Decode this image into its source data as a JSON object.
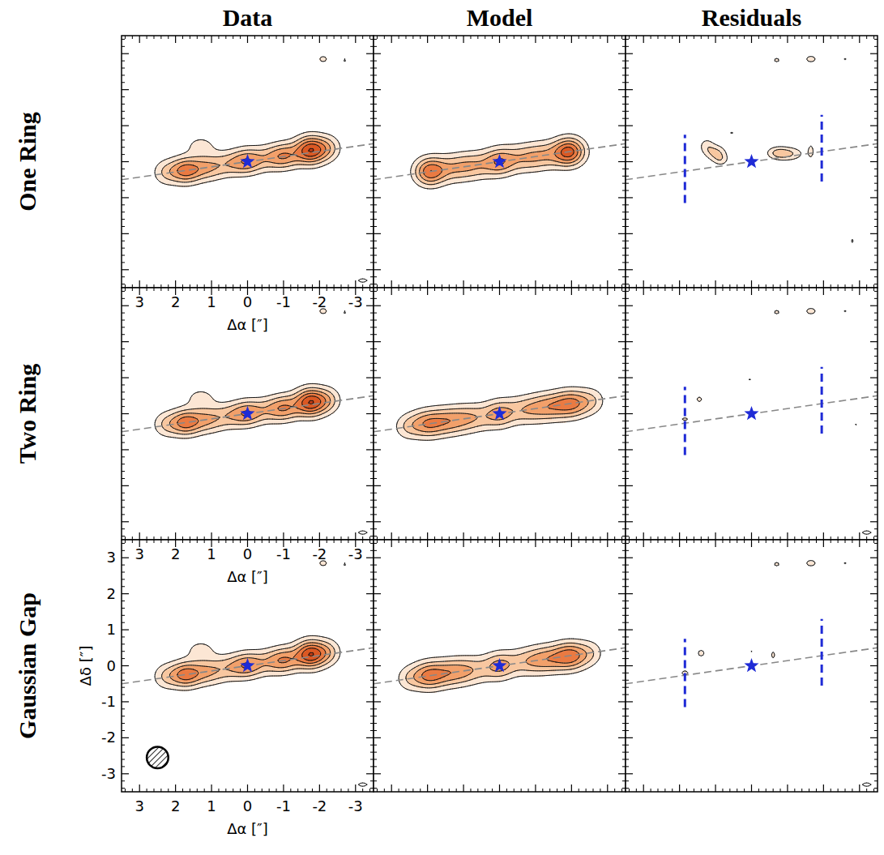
{
  "chart_data": {
    "type": "contour",
    "columns": [
      "Data",
      "Model",
      "Residuals"
    ],
    "xlabel": "Δα [″]",
    "ylabel": "Δδ [″]",
    "xlim": [
      3.5,
      -3.5
    ],
    "ylim": [
      -3.5,
      3.5
    ],
    "xticks": [
      3,
      2,
      1,
      0,
      -1,
      -2,
      -3
    ],
    "yticks": [
      -3,
      -2,
      -1,
      0,
      1,
      2,
      3
    ],
    "levels": [
      3,
      6,
      9,
      12,
      15,
      18
    ],
    "colors": [
      "#fce6d4",
      "#f8c7a0",
      "#f2a06a",
      "#ea7a42",
      "#db5823",
      "#c43a14"
    ],
    "negative_levels": [
      -3
    ],
    "star": {
      "x": 0,
      "y": 0,
      "color": "#1f2bd6"
    },
    "disk_axis": {
      "x": [
        3.5,
        -3.5
      ],
      "y": [
        -0.5,
        0.5
      ]
    },
    "gap_markers": {
      "color": "#1f2bd6",
      "lines": [
        {
          "x": 1.85,
          "y": [
            -1.15,
            0.75
          ]
        },
        {
          "x": -1.95,
          "y": [
            -0.55,
            1.3
          ]
        }
      ]
    },
    "rows": [
      {
        "label": "One Ring",
        "panels": [
          {
            "components": [
              {
                "x": 1.75,
                "y": -0.25,
                "peak": 12,
                "sx": 0.3,
                "sy": 0.25
              },
              {
                "x": 1.15,
                "y": -0.17,
                "peak": 8,
                "sx": 0.35,
                "sy": 0.25
              },
              {
                "x": 0.5,
                "y": -0.05,
                "peak": 6,
                "sx": 0.35,
                "sy": 0.25
              },
              {
                "x": 0.0,
                "y": 0.02,
                "peak": 9,
                "sx": 0.3,
                "sy": 0.25
              },
              {
                "x": -0.6,
                "y": 0.1,
                "peak": 6,
                "sx": 0.35,
                "sy": 0.25
              },
              {
                "x": -1.05,
                "y": 0.17,
                "peak": 9,
                "sx": 0.3,
                "sy": 0.25
              },
              {
                "x": -1.75,
                "y": 0.32,
                "peak": 17,
                "sx": 0.3,
                "sy": 0.27
              },
              {
                "x": -2.25,
                "y": 0.38,
                "peak": 6,
                "sx": 0.25,
                "sy": 0.25
              },
              {
                "x": 2.3,
                "y": -0.3,
                "peak": 5,
                "sx": 0.25,
                "sy": 0.25
              },
              {
                "x": 1.3,
                "y": 0.45,
                "peak": 4,
                "sx": 0.3,
                "sy": 0.2
              },
              {
                "x": -2.1,
                "y": 2.85,
                "peak": 4,
                "sx": 0.12,
                "sy": 0.09
              },
              {
                "x": -2.7,
                "y": 2.82,
                "peak": 3.4,
                "sx": 0.08,
                "sy": 0.06
              },
              {
                "x": -3.2,
                "y": -3.3,
                "peak": -3.6,
                "sx": 0.2,
                "sy": 0.08
              }
            ]
          },
          {
            "components": [
              {
                "x": 1.95,
                "y": -0.28,
                "peak": 13,
                "sx": 0.3,
                "sy": 0.27
              },
              {
                "x": 1.3,
                "y": -0.19,
                "peak": 7,
                "sx": 0.4,
                "sy": 0.27
              },
              {
                "x": 0.65,
                "y": -0.09,
                "peak": 7,
                "sx": 0.4,
                "sy": 0.27
              },
              {
                "x": 0.0,
                "y": 0.0,
                "peak": 9,
                "sx": 0.3,
                "sy": 0.27
              },
              {
                "x": -0.65,
                "y": 0.09,
                "peak": 7,
                "sx": 0.4,
                "sy": 0.27
              },
              {
                "x": -1.3,
                "y": 0.19,
                "peak": 7,
                "sx": 0.4,
                "sy": 0.27
              },
              {
                "x": -1.95,
                "y": 0.28,
                "peak": 15,
                "sx": 0.3,
                "sy": 0.27
              }
            ]
          },
          {
            "components": [
              {
                "x": 1.0,
                "y": 0.25,
                "peak": 6.5,
                "sx": 0.2,
                "sy": 0.15
              },
              {
                "x": 1.25,
                "y": 0.45,
                "peak": 4,
                "sx": 0.15,
                "sy": 0.15
              },
              {
                "x": 0.85,
                "y": 0.05,
                "peak": 4,
                "sx": 0.15,
                "sy": 0.12
              },
              {
                "x": -1.0,
                "y": 0.22,
                "peak": 6.5,
                "sx": 0.3,
                "sy": 0.13
              },
              {
                "x": -0.7,
                "y": 0.25,
                "peak": 4,
                "sx": 0.2,
                "sy": 0.12
              },
              {
                "x": -1.65,
                "y": 0.3,
                "peak": 3.8,
                "sx": 0.07,
                "sy": 0.18
              },
              {
                "x": 0.55,
                "y": 0.8,
                "peak": 3.3,
                "sx": 0.08,
                "sy": 0.05
              },
              {
                "x": -0.7,
                "y": 2.82,
                "peak": 3.6,
                "sx": 0.1,
                "sy": 0.08
              },
              {
                "x": -1.65,
                "y": 2.85,
                "peak": 4.2,
                "sx": 0.14,
                "sy": 0.09
              },
              {
                "x": -2.6,
                "y": 2.85,
                "peak": 3.3,
                "sx": 0.07,
                "sy": 0.05
              },
              {
                "x": -2.8,
                "y": -2.2,
                "peak": 3.4,
                "sx": 0.06,
                "sy": 0.09
              }
            ]
          }
        ]
      },
      {
        "label": "Two Ring",
        "panels": [
          {
            "components": [
              {
                "x": 1.75,
                "y": -0.25,
                "peak": 12,
                "sx": 0.3,
                "sy": 0.25
              },
              {
                "x": 1.15,
                "y": -0.17,
                "peak": 8,
                "sx": 0.35,
                "sy": 0.25
              },
              {
                "x": 0.5,
                "y": -0.05,
                "peak": 6,
                "sx": 0.35,
                "sy": 0.25
              },
              {
                "x": 0.0,
                "y": 0.02,
                "peak": 9,
                "sx": 0.3,
                "sy": 0.25
              },
              {
                "x": -0.6,
                "y": 0.1,
                "peak": 6,
                "sx": 0.35,
                "sy": 0.25
              },
              {
                "x": -1.05,
                "y": 0.17,
                "peak": 9,
                "sx": 0.3,
                "sy": 0.25
              },
              {
                "x": -1.75,
                "y": 0.32,
                "peak": 17,
                "sx": 0.3,
                "sy": 0.27
              },
              {
                "x": -2.25,
                "y": 0.38,
                "peak": 6,
                "sx": 0.25,
                "sy": 0.25
              },
              {
                "x": 2.3,
                "y": -0.3,
                "peak": 5,
                "sx": 0.25,
                "sy": 0.25
              },
              {
                "x": 1.3,
                "y": 0.45,
                "peak": 4,
                "sx": 0.3,
                "sy": 0.2
              },
              {
                "x": -2.1,
                "y": 2.85,
                "peak": 4,
                "sx": 0.12,
                "sy": 0.09
              },
              {
                "x": -2.7,
                "y": 2.82,
                "peak": 3.4,
                "sx": 0.08,
                "sy": 0.06
              },
              {
                "x": -3.2,
                "y": -3.3,
                "peak": -3.6,
                "sx": 0.2,
                "sy": 0.08
              }
            ]
          },
          {
            "components": [
              {
                "x": 2.05,
                "y": -0.29,
                "peak": 10,
                "sx": 0.35,
                "sy": 0.27
              },
              {
                "x": 1.4,
                "y": -0.2,
                "peak": 9,
                "sx": 0.4,
                "sy": 0.27
              },
              {
                "x": 0.7,
                "y": -0.1,
                "peak": 7,
                "sx": 0.4,
                "sy": 0.27
              },
              {
                "x": 0.0,
                "y": 0.0,
                "peak": 8,
                "sx": 0.3,
                "sy": 0.27
              },
              {
                "x": -0.7,
                "y": 0.1,
                "peak": 7,
                "sx": 0.4,
                "sy": 0.27
              },
              {
                "x": -1.4,
                "y": 0.2,
                "peak": 9,
                "sx": 0.4,
                "sy": 0.27
              },
              {
                "x": -2.05,
                "y": 0.29,
                "peak": 11,
                "sx": 0.35,
                "sy": 0.27
              },
              {
                "x": 2.6,
                "y": -0.37,
                "peak": 4,
                "sx": 0.25,
                "sy": 0.25
              },
              {
                "x": -2.6,
                "y": 0.37,
                "peak": 4,
                "sx": 0.25,
                "sy": 0.25
              }
            ]
          },
          {
            "components": [
              {
                "x": 1.85,
                "y": -0.15,
                "peak": 3.4,
                "sx": 0.15,
                "sy": 0.08
              },
              {
                "x": 1.45,
                "y": 0.4,
                "peak": 3.6,
                "sx": 0.1,
                "sy": 0.1
              },
              {
                "x": 0.05,
                "y": 0.95,
                "peak": 3.2,
                "sx": 0.08,
                "sy": 0.04
              },
              {
                "x": -0.7,
                "y": 2.82,
                "peak": 3.6,
                "sx": 0.1,
                "sy": 0.08
              },
              {
                "x": -1.65,
                "y": 2.85,
                "peak": 4.2,
                "sx": 0.14,
                "sy": 0.09
              },
              {
                "x": -2.6,
                "y": 2.85,
                "peak": 3.3,
                "sx": 0.07,
                "sy": 0.05
              },
              {
                "x": -3.2,
                "y": -3.3,
                "peak": -3.6,
                "sx": 0.2,
                "sy": 0.08
              },
              {
                "x": -2.9,
                "y": -0.3,
                "peak": -3.3,
                "sx": 0.05,
                "sy": 0.05
              }
            ]
          }
        ]
      },
      {
        "label": "Gaussian Gap",
        "panels": [
          {
            "components": [
              {
                "x": 1.75,
                "y": -0.25,
                "peak": 12,
                "sx": 0.3,
                "sy": 0.25
              },
              {
                "x": 1.15,
                "y": -0.17,
                "peak": 8,
                "sx": 0.35,
                "sy": 0.25
              },
              {
                "x": 0.5,
                "y": -0.05,
                "peak": 6,
                "sx": 0.35,
                "sy": 0.25
              },
              {
                "x": 0.0,
                "y": 0.02,
                "peak": 9,
                "sx": 0.3,
                "sy": 0.25
              },
              {
                "x": -0.6,
                "y": 0.1,
                "peak": 6,
                "sx": 0.35,
                "sy": 0.25
              },
              {
                "x": -1.05,
                "y": 0.17,
                "peak": 9,
                "sx": 0.3,
                "sy": 0.25
              },
              {
                "x": -1.75,
                "y": 0.32,
                "peak": 17,
                "sx": 0.3,
                "sy": 0.27
              },
              {
                "x": -2.25,
                "y": 0.38,
                "peak": 6,
                "sx": 0.25,
                "sy": 0.25
              },
              {
                "x": 2.3,
                "y": -0.3,
                "peak": 5,
                "sx": 0.25,
                "sy": 0.25
              },
              {
                "x": 1.3,
                "y": 0.45,
                "peak": 4,
                "sx": 0.3,
                "sy": 0.2
              },
              {
                "x": -2.1,
                "y": 2.85,
                "peak": 4,
                "sx": 0.12,
                "sy": 0.09
              },
              {
                "x": -2.7,
                "y": 2.82,
                "peak": 3.4,
                "sx": 0.08,
                "sy": 0.06
              },
              {
                "x": -3.2,
                "y": -3.3,
                "peak": -3.6,
                "sx": 0.2,
                "sy": 0.08
              }
            ],
            "beam": {
              "x": 2.5,
              "y": -2.55,
              "major": 0.6,
              "minor": 0.6
            }
          },
          {
            "components": [
              {
                "x": 2.0,
                "y": -0.28,
                "peak": 11,
                "sx": 0.33,
                "sy": 0.27
              },
              {
                "x": 1.35,
                "y": -0.19,
                "peak": 9,
                "sx": 0.4,
                "sy": 0.27
              },
              {
                "x": 0.7,
                "y": -0.1,
                "peak": 6,
                "sx": 0.4,
                "sy": 0.27
              },
              {
                "x": 0.0,
                "y": 0.0,
                "peak": 8,
                "sx": 0.3,
                "sy": 0.27
              },
              {
                "x": -0.7,
                "y": 0.1,
                "peak": 6,
                "sx": 0.4,
                "sy": 0.27
              },
              {
                "x": -1.35,
                "y": 0.19,
                "peak": 9,
                "sx": 0.4,
                "sy": 0.27
              },
              {
                "x": -2.0,
                "y": 0.28,
                "peak": 12,
                "sx": 0.33,
                "sy": 0.27
              },
              {
                "x": 2.55,
                "y": -0.36,
                "peak": 4,
                "sx": 0.25,
                "sy": 0.25
              },
              {
                "x": -2.55,
                "y": 0.36,
                "peak": 4,
                "sx": 0.25,
                "sy": 0.25
              }
            ]
          },
          {
            "components": [
              {
                "x": 1.85,
                "y": -0.2,
                "peak": 3.5,
                "sx": 0.15,
                "sy": 0.1
              },
              {
                "x": 1.4,
                "y": 0.35,
                "peak": 3.7,
                "sx": 0.12,
                "sy": 0.12
              },
              {
                "x": -0.6,
                "y": 0.3,
                "peak": 3.5,
                "sx": 0.08,
                "sy": 0.15
              },
              {
                "x": 0.0,
                "y": 0.4,
                "peak": 3.2,
                "sx": 0.05,
                "sy": 0.04
              },
              {
                "x": -0.7,
                "y": 2.82,
                "peak": 3.6,
                "sx": 0.1,
                "sy": 0.08
              },
              {
                "x": -1.65,
                "y": 2.85,
                "peak": 4.2,
                "sx": 0.14,
                "sy": 0.09
              },
              {
                "x": -2.6,
                "y": 2.85,
                "peak": 3.3,
                "sx": 0.07,
                "sy": 0.05
              },
              {
                "x": -3.2,
                "y": -3.3,
                "peak": -3.6,
                "sx": 0.2,
                "sy": 0.08
              }
            ]
          }
        ]
      }
    ]
  }
}
